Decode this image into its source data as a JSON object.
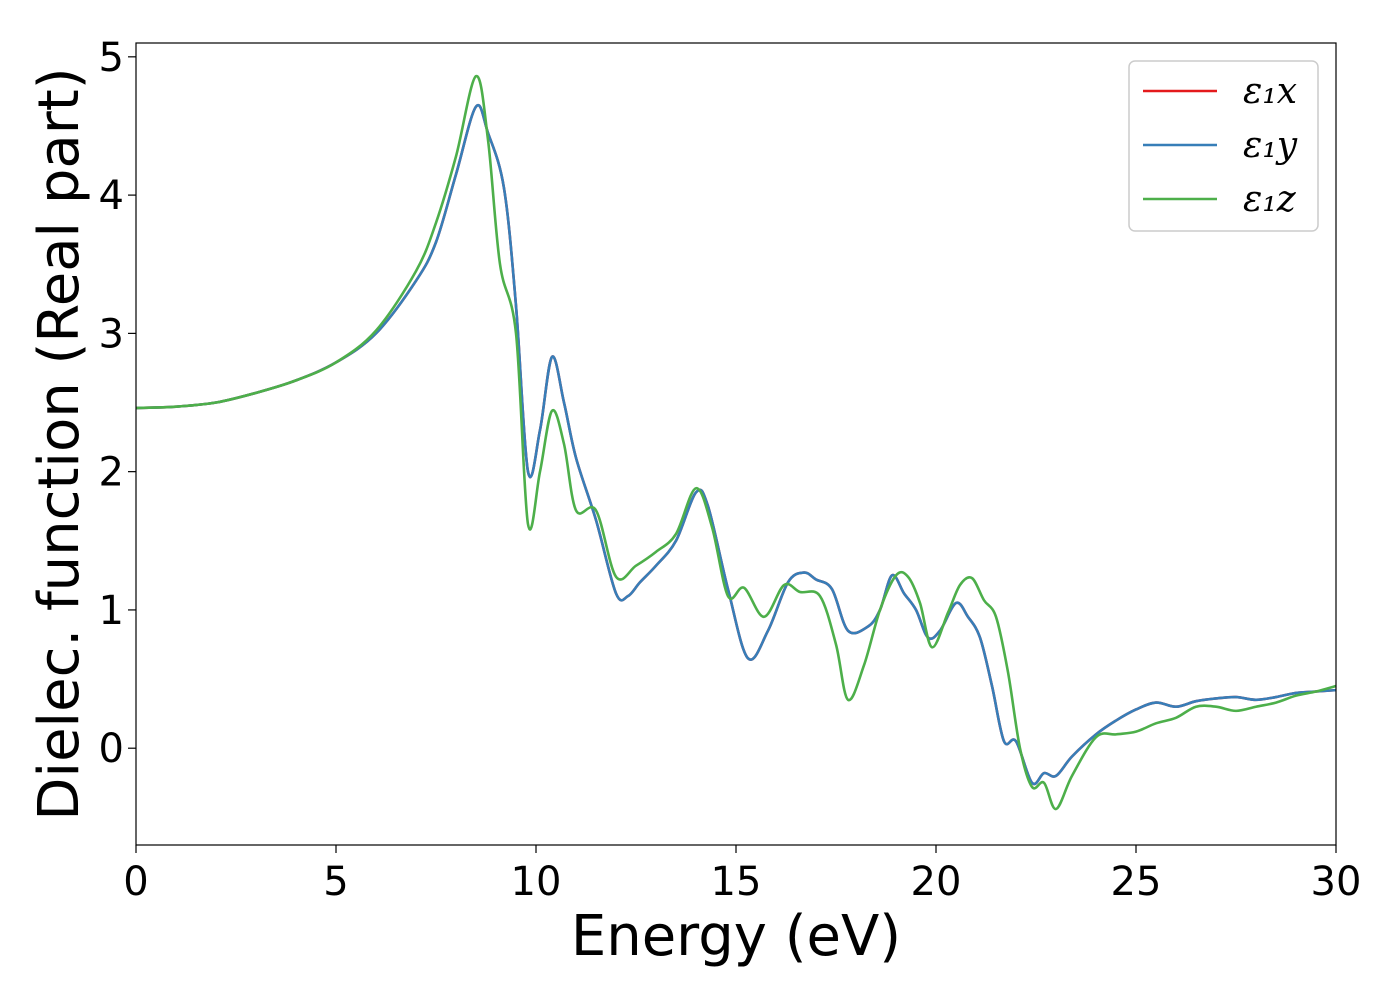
{
  "chart_data": {
    "type": "line",
    "title": "",
    "xlabel": "Energy (eV)",
    "ylabel": "Dielec. function (Real part)",
    "xlim": [
      0,
      30
    ],
    "ylim": [
      -0.7,
      5.1
    ],
    "xticks": [
      0,
      5,
      10,
      15,
      20,
      25,
      30
    ],
    "yticks": [
      0,
      1,
      2,
      3,
      4,
      5
    ],
    "grid": false,
    "legend_placement": "top-right",
    "series": [
      {
        "name": "ε₁x",
        "color": "#e41a1c",
        "points": [
          [
            0,
            2.46
          ],
          [
            1,
            2.47
          ],
          [
            2,
            2.5
          ],
          [
            3,
            2.57
          ],
          [
            4,
            2.66
          ],
          [
            5,
            2.79
          ],
          [
            6,
            3.0
          ],
          [
            7,
            3.38
          ],
          [
            7.5,
            3.66
          ],
          [
            8,
            4.15
          ],
          [
            8.5,
            4.64
          ],
          [
            8.8,
            4.45
          ],
          [
            9.2,
            4.05
          ],
          [
            9.5,
            3.2
          ],
          [
            9.8,
            2.0
          ],
          [
            10.1,
            2.3
          ],
          [
            10.4,
            2.83
          ],
          [
            10.7,
            2.5
          ],
          [
            11,
            2.1
          ],
          [
            11.5,
            1.65
          ],
          [
            12,
            1.12
          ],
          [
            12.3,
            1.1
          ],
          [
            12.6,
            1.2
          ],
          [
            13,
            1.32
          ],
          [
            13.5,
            1.5
          ],
          [
            14,
            1.85
          ],
          [
            14.3,
            1.75
          ],
          [
            14.8,
            1.15
          ],
          [
            15.3,
            0.65
          ],
          [
            15.8,
            0.85
          ],
          [
            16.3,
            1.2
          ],
          [
            16.7,
            1.27
          ],
          [
            17,
            1.22
          ],
          [
            17.4,
            1.15
          ],
          [
            17.8,
            0.85
          ],
          [
            18.3,
            0.88
          ],
          [
            18.6,
            1.0
          ],
          [
            18.9,
            1.25
          ],
          [
            19.2,
            1.12
          ],
          [
            19.5,
            1.0
          ],
          [
            19.8,
            0.8
          ],
          [
            20.1,
            0.85
          ],
          [
            20.5,
            1.05
          ],
          [
            20.8,
            0.95
          ],
          [
            21.1,
            0.8
          ],
          [
            21.4,
            0.45
          ],
          [
            21.7,
            0.05
          ],
          [
            22,
            0.05
          ],
          [
            22.4,
            -0.25
          ],
          [
            22.7,
            -0.18
          ],
          [
            23,
            -0.2
          ],
          [
            23.4,
            -0.06
          ],
          [
            24,
            0.1
          ],
          [
            24.5,
            0.2
          ],
          [
            25,
            0.28
          ],
          [
            25.5,
            0.33
          ],
          [
            26,
            0.3
          ],
          [
            26.5,
            0.34
          ],
          [
            27,
            0.36
          ],
          [
            27.5,
            0.37
          ],
          [
            28,
            0.35
          ],
          [
            28.5,
            0.37
          ],
          [
            29,
            0.4
          ],
          [
            29.5,
            0.41
          ],
          [
            30,
            0.42
          ]
        ]
      },
      {
        "name": "ε₁y",
        "color": "#377eb8",
        "points": [
          [
            0,
            2.46
          ],
          [
            1,
            2.47
          ],
          [
            2,
            2.5
          ],
          [
            3,
            2.57
          ],
          [
            4,
            2.66
          ],
          [
            5,
            2.79
          ],
          [
            6,
            3.0
          ],
          [
            7,
            3.38
          ],
          [
            7.5,
            3.66
          ],
          [
            8,
            4.15
          ],
          [
            8.5,
            4.64
          ],
          [
            8.8,
            4.45
          ],
          [
            9.2,
            4.05
          ],
          [
            9.5,
            3.2
          ],
          [
            9.8,
            2.0
          ],
          [
            10.1,
            2.3
          ],
          [
            10.4,
            2.83
          ],
          [
            10.7,
            2.5
          ],
          [
            11,
            2.1
          ],
          [
            11.5,
            1.65
          ],
          [
            12,
            1.12
          ],
          [
            12.3,
            1.1
          ],
          [
            12.6,
            1.2
          ],
          [
            13,
            1.32
          ],
          [
            13.5,
            1.5
          ],
          [
            14,
            1.85
          ],
          [
            14.3,
            1.75
          ],
          [
            14.8,
            1.15
          ],
          [
            15.3,
            0.65
          ],
          [
            15.8,
            0.85
          ],
          [
            16.3,
            1.2
          ],
          [
            16.7,
            1.27
          ],
          [
            17,
            1.22
          ],
          [
            17.4,
            1.15
          ],
          [
            17.8,
            0.85
          ],
          [
            18.3,
            0.88
          ],
          [
            18.6,
            1.0
          ],
          [
            18.9,
            1.25
          ],
          [
            19.2,
            1.12
          ],
          [
            19.5,
            1.0
          ],
          [
            19.8,
            0.8
          ],
          [
            20.1,
            0.85
          ],
          [
            20.5,
            1.05
          ],
          [
            20.8,
            0.95
          ],
          [
            21.1,
            0.8
          ],
          [
            21.4,
            0.45
          ],
          [
            21.7,
            0.05
          ],
          [
            22,
            0.05
          ],
          [
            22.4,
            -0.25
          ],
          [
            22.7,
            -0.18
          ],
          [
            23,
            -0.2
          ],
          [
            23.4,
            -0.06
          ],
          [
            24,
            0.1
          ],
          [
            24.5,
            0.2
          ],
          [
            25,
            0.28
          ],
          [
            25.5,
            0.33
          ],
          [
            26,
            0.3
          ],
          [
            26.5,
            0.34
          ],
          [
            27,
            0.36
          ],
          [
            27.5,
            0.37
          ],
          [
            28,
            0.35
          ],
          [
            28.5,
            0.37
          ],
          [
            29,
            0.4
          ],
          [
            29.5,
            0.41
          ],
          [
            30,
            0.42
          ]
        ]
      },
      {
        "name": "ε₁z",
        "color": "#4daf4a",
        "points": [
          [
            0,
            2.46
          ],
          [
            1,
            2.47
          ],
          [
            2,
            2.5
          ],
          [
            3,
            2.57
          ],
          [
            4,
            2.66
          ],
          [
            5,
            2.79
          ],
          [
            6,
            3.02
          ],
          [
            7,
            3.45
          ],
          [
            7.5,
            3.8
          ],
          [
            8,
            4.28
          ],
          [
            8.5,
            4.86
          ],
          [
            8.8,
            4.4
          ],
          [
            9.1,
            3.5
          ],
          [
            9.5,
            3.0
          ],
          [
            9.8,
            1.62
          ],
          [
            10.1,
            2.0
          ],
          [
            10.4,
            2.44
          ],
          [
            10.7,
            2.2
          ],
          [
            11,
            1.72
          ],
          [
            11.5,
            1.72
          ],
          [
            12,
            1.24
          ],
          [
            12.5,
            1.32
          ],
          [
            13,
            1.42
          ],
          [
            13.5,
            1.55
          ],
          [
            14,
            1.88
          ],
          [
            14.4,
            1.6
          ],
          [
            14.8,
            1.1
          ],
          [
            15.2,
            1.16
          ],
          [
            15.7,
            0.95
          ],
          [
            16.2,
            1.18
          ],
          [
            16.6,
            1.13
          ],
          [
            17.1,
            1.1
          ],
          [
            17.5,
            0.75
          ],
          [
            17.8,
            0.35
          ],
          [
            18.2,
            0.6
          ],
          [
            18.6,
            1.0
          ],
          [
            19,
            1.25
          ],
          [
            19.3,
            1.24
          ],
          [
            19.6,
            1.05
          ],
          [
            19.9,
            0.73
          ],
          [
            20.3,
            0.98
          ],
          [
            20.6,
            1.18
          ],
          [
            20.9,
            1.23
          ],
          [
            21.2,
            1.07
          ],
          [
            21.5,
            0.95
          ],
          [
            21.8,
            0.55
          ],
          [
            22.1,
            0.0
          ],
          [
            22.4,
            -0.28
          ],
          [
            22.7,
            -0.25
          ],
          [
            23,
            -0.44
          ],
          [
            23.4,
            -0.2
          ],
          [
            24,
            0.08
          ],
          [
            24.5,
            0.1
          ],
          [
            25,
            0.12
          ],
          [
            25.5,
            0.18
          ],
          [
            26,
            0.22
          ],
          [
            26.5,
            0.3
          ],
          [
            27,
            0.3
          ],
          [
            27.5,
            0.27
          ],
          [
            28,
            0.3
          ],
          [
            28.5,
            0.33
          ],
          [
            29,
            0.38
          ],
          [
            29.5,
            0.41
          ],
          [
            30,
            0.45
          ]
        ]
      }
    ]
  }
}
